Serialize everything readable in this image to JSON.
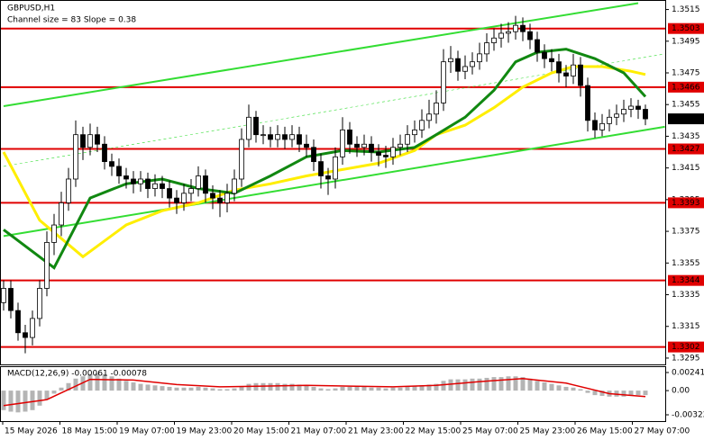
{
  "chart_data": [
    {
      "type": "candlestick",
      "title": "GBPUSD,H1",
      "subtitle": "Channel size = 83 Slope = 0.38",
      "open": [
        1.333,
        1.3339,
        1.3325,
        1.3311,
        1.3308,
        1.332,
        1.3339,
        1.3368,
        1.3379,
        1.3393,
        1.3408,
        1.3436,
        1.3428,
        1.3436,
        1.343,
        1.3419,
        1.3416,
        1.341,
        1.3408,
        1.3405,
        1.3408,
        1.3402,
        1.3405,
        1.3402,
        1.3396,
        1.3393,
        1.3399,
        1.3402,
        1.341,
        1.3399,
        1.3396,
        1.3393,
        1.3399,
        1.3408,
        1.3433,
        1.3447,
        1.3436,
        1.3436,
        1.3433,
        1.3436,
        1.3433,
        1.3436,
        1.343,
        1.3428,
        1.3419,
        1.341,
        1.3408,
        1.3422,
        1.3439,
        1.343,
        1.3428,
        1.343,
        1.3425,
        1.3423,
        1.3422,
        1.3428,
        1.343,
        1.3436,
        1.3439,
        1.3445,
        1.3449,
        1.3456,
        1.3482,
        1.3484,
        1.3476,
        1.3479,
        1.3482,
        1.3487,
        1.3494,
        1.3497,
        1.35,
        1.3501,
        1.3505,
        1.3501,
        1.3496,
        1.3488,
        1.3484,
        1.3482,
        1.3475,
        1.3473,
        1.348,
        1.3467,
        1.3445,
        1.3439,
        1.3443,
        1.3447,
        1.3449,
        1.3452,
        1.3454,
        1.3452
      ],
      "high": [
        1.3344,
        1.3344,
        1.333,
        1.3316,
        1.3325,
        1.3344,
        1.3375,
        1.3386,
        1.34,
        1.3415,
        1.3445,
        1.3441,
        1.3443,
        1.3441,
        1.3435,
        1.3424,
        1.3421,
        1.3415,
        1.3413,
        1.3413,
        1.3412,
        1.3411,
        1.341,
        1.3407,
        1.3401,
        1.3405,
        1.3408,
        1.3416,
        1.3414,
        1.3404,
        1.3401,
        1.3405,
        1.3414,
        1.344,
        1.3455,
        1.3451,
        1.3442,
        1.3441,
        1.3442,
        1.3441,
        1.3442,
        1.3441,
        1.3436,
        1.3433,
        1.3424,
        1.3415,
        1.3428,
        1.3447,
        1.3444,
        1.3435,
        1.3436,
        1.3435,
        1.343,
        1.3429,
        1.3434,
        1.3436,
        1.3442,
        1.3445,
        1.3452,
        1.3458,
        1.3464,
        1.349,
        1.3492,
        1.3489,
        1.3486,
        1.3488,
        1.3494,
        1.35,
        1.3503,
        1.3506,
        1.3507,
        1.3511,
        1.351,
        1.3506,
        1.3501,
        1.3493,
        1.349,
        1.3487,
        1.348,
        1.3487,
        1.3485,
        1.3472,
        1.345,
        1.3449,
        1.3452,
        1.3455,
        1.3458,
        1.3459,
        1.3458,
        1.3455
      ],
      "low": [
        1.3325,
        1.332,
        1.3306,
        1.3298,
        1.3303,
        1.3315,
        1.3334,
        1.336,
        1.3372,
        1.3388,
        1.3403,
        1.342,
        1.3423,
        1.3425,
        1.3414,
        1.341,
        1.3405,
        1.3402,
        1.3399,
        1.34,
        1.3396,
        1.3397,
        1.3396,
        1.339,
        1.3386,
        1.3388,
        1.3394,
        1.3397,
        1.3393,
        1.3389,
        1.3384,
        1.3387,
        1.3394,
        1.3403,
        1.3428,
        1.3431,
        1.343,
        1.3428,
        1.3428,
        1.3427,
        1.3428,
        1.3425,
        1.3422,
        1.3413,
        1.3402,
        1.3398,
        1.3402,
        1.3417,
        1.3424,
        1.3422,
        1.3423,
        1.3419,
        1.3416,
        1.3415,
        1.3417,
        1.3423,
        1.3425,
        1.3431,
        1.3434,
        1.344,
        1.3443,
        1.3451,
        1.3475,
        1.347,
        1.3471,
        1.3474,
        1.3477,
        1.3482,
        1.3489,
        1.3491,
        1.3494,
        1.3496,
        1.3495,
        1.349,
        1.3482,
        1.3478,
        1.3476,
        1.3469,
        1.3466,
        1.3468,
        1.346,
        1.3438,
        1.3434,
        1.3435,
        1.3438,
        1.3442,
        1.3444,
        1.3447,
        1.3446,
        1.3442
      ],
      "close": [
        1.3339,
        1.3325,
        1.3311,
        1.3308,
        1.332,
        1.3339,
        1.3368,
        1.3379,
        1.3393,
        1.3408,
        1.3436,
        1.3428,
        1.3436,
        1.343,
        1.3419,
        1.3416,
        1.341,
        1.3408,
        1.3405,
        1.3408,
        1.3402,
        1.3405,
        1.3402,
        1.3396,
        1.3393,
        1.3399,
        1.3402,
        1.341,
        1.3399,
        1.3396,
        1.3393,
        1.3399,
        1.3408,
        1.3433,
        1.3447,
        1.3436,
        1.3436,
        1.3433,
        1.3436,
        1.3433,
        1.3436,
        1.343,
        1.3428,
        1.3419,
        1.341,
        1.3408,
        1.3422,
        1.3439,
        1.343,
        1.3428,
        1.343,
        1.3425,
        1.3423,
        1.3422,
        1.3428,
        1.343,
        1.3436,
        1.3439,
        1.3445,
        1.3449,
        1.3456,
        1.3482,
        1.3484,
        1.3476,
        1.3479,
        1.3482,
        1.3487,
        1.3494,
        1.3497,
        1.35,
        1.3501,
        1.3505,
        1.3501,
        1.3496,
        1.3488,
        1.3484,
        1.3482,
        1.3475,
        1.3473,
        1.348,
        1.3467,
        1.3445,
        1.3439,
        1.3443,
        1.3447,
        1.3449,
        1.3452,
        1.3454,
        1.3452,
        1.3446
      ],
      "up_color": "#ffffff",
      "down_color": "#000000",
      "x_labels": [
        "15 May 2026",
        "18 May 15:00",
        "19 May 07:00",
        "19 May 23:00",
        "20 May 15:00",
        "21 May 07:00",
        "21 May 23:00",
        "22 May 15:00",
        "25 May 07:00",
        "25 May 23:00",
        "26 May 15:00",
        "27 May 07:00"
      ],
      "ylim": [
        1.3291,
        1.3521
      ],
      "yticks": [
        1.3515,
        1.3495,
        1.3475,
        1.3455,
        1.3435,
        1.3415,
        1.3395,
        1.3375,
        1.3355,
        1.3335,
        1.3315,
        1.3295
      ],
      "levels": [
        {
          "value": 1.3503,
          "color": "#e00000"
        },
        {
          "value": 1.3466,
          "color": "#e00000"
        },
        {
          "value": 1.3427,
          "color": "#e00000"
        },
        {
          "value": 1.3393,
          "color": "#e00000"
        },
        {
          "value": 1.3344,
          "color": "#e00000"
        },
        {
          "value": 1.3302,
          "color": "#e00000"
        }
      ],
      "last_price": 1.3446,
      "lines": [
        {
          "x": [
            0,
            88
          ],
          "values": [
            1.3454,
            1.3519
          ],
          "color": "#33dd33",
          "width": 2
        },
        {
          "x": [
            0,
            91.7
          ],
          "values": [
            1.3372,
            1.3441
          ],
          "color": "#33dd33",
          "width": 2
        },
        {
          "x": [
            0,
            91.7
          ],
          "values": [
            1.3416,
            1.3487
          ],
          "color": "#33dd33",
          "width": 0.6,
          "dashed": true
        },
        {
          "x": [
            0,
            5,
            11,
            17,
            22,
            27,
            32,
            37,
            42,
            47,
            52,
            57,
            60,
            64,
            68,
            72,
            76,
            79,
            83,
            87,
            89
          ],
          "values": [
            1.3425,
            1.3382,
            1.3359,
            1.3379,
            1.3388,
            1.3393,
            1.3401,
            1.3405,
            1.341,
            1.3414,
            1.3418,
            1.3426,
            1.3436,
            1.3442,
            1.3453,
            1.3466,
            1.3475,
            1.3479,
            1.3479,
            1.3476,
            1.3474
          ],
          "color": "#ffee00",
          "width": 3
        },
        {
          "x": [
            0,
            7,
            12,
            17,
            22,
            27,
            32,
            37,
            42,
            47,
            52,
            57,
            60,
            64,
            68,
            71,
            74,
            78,
            82,
            86,
            89
          ],
          "values": [
            1.3376,
            1.3352,
            1.3396,
            1.3405,
            1.3408,
            1.3402,
            1.3399,
            1.341,
            1.3422,
            1.3426,
            1.3425,
            1.3428,
            1.3436,
            1.3447,
            1.3464,
            1.3482,
            1.3488,
            1.349,
            1.3484,
            1.3475,
            1.346
          ],
          "color": "#118811",
          "width": 3
        }
      ]
    },
    {
      "type": "macd",
      "title": "MACD(12,26,9) -0.00061 -0.00078",
      "histogram": [
        -0.0026,
        -0.0028,
        -0.0029,
        -0.0028,
        -0.0026,
        -0.002,
        -0.0012,
        -0.0004,
        0.0004,
        0.001,
        0.0016,
        0.0019,
        0.0022,
        0.0023,
        0.0022,
        0.0019,
        0.0016,
        0.0013,
        0.0011,
        0.0009,
        0.0008,
        0.0007,
        0.0006,
        0.0005,
        0.0004,
        0.0004,
        0.0004,
        0.0005,
        0.0004,
        0.0003,
        0.0002,
        0.0002,
        0.0003,
        0.0006,
        0.0009,
        0.001,
        0.001,
        0.001,
        0.001,
        0.0009,
        0.0009,
        0.0008,
        0.0007,
        0.0005,
        0.0003,
        0.0002,
        0.0003,
        0.0005,
        0.0005,
        0.0005,
        0.0005,
        0.0004,
        0.0004,
        0.0003,
        0.0004,
        0.0004,
        0.0005,
        0.0006,
        0.0007,
        0.0008,
        0.0009,
        0.0013,
        0.0015,
        0.0015,
        0.0015,
        0.0016,
        0.0016,
        0.0017,
        0.0018,
        0.0018,
        0.0019,
        0.0019,
        0.0018,
        0.0016,
        0.0013,
        0.0011,
        0.0009,
        0.0007,
        0.0005,
        0.0004,
        0.0002,
        -0.0003,
        -0.0006,
        -0.0007,
        -0.0008,
        -0.0008,
        -0.0008,
        -0.0007,
        -0.0006,
        -0.0006
      ],
      "histogram_color": "#b4b4b4",
      "signal": {
        "x": [
          0,
          6,
          12,
          18,
          24,
          30,
          36,
          42,
          48,
          54,
          60,
          66,
          72,
          78,
          84,
          89
        ],
        "values": [
          -0.002,
          -0.0012,
          0.0015,
          0.0014,
          0.0008,
          0.0005,
          0.0006,
          0.0007,
          0.0006,
          0.0005,
          0.0007,
          0.0012,
          0.0016,
          0.001,
          -0.0004,
          -0.0008
        ],
        "color": "#e00000"
      },
      "ylim": [
        -0.00406,
        0.00325
      ],
      "yticks": [
        0.00241,
        {
          "value": 0,
          "label": "0.00"
        },
        -0.00322
      ]
    }
  ]
}
